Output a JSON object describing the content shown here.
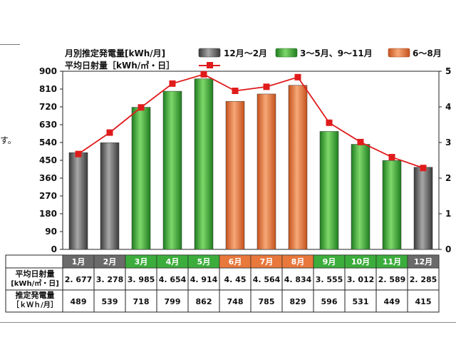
{
  "page": {
    "side_text": "す。"
  },
  "legend": {
    "bar_title": "月別推定発電量[kWh/月]",
    "line_title": "平均日射量［kWh/㎡・日］",
    "groups": [
      {
        "label": "12月～2月",
        "color": "#6a6a6a"
      },
      {
        "label": "3～5月、9～11月",
        "color": "#3cad3c"
      },
      {
        "label": "6～8月",
        "color": "#e8783c"
      }
    ]
  },
  "table": {
    "row_labels": [
      [
        "平均日射量",
        "[kWh/㎡・日]"
      ],
      [
        "推定発電量",
        "［ｋＷｈ/月］"
      ]
    ],
    "irradiance_display": [
      "2. 677",
      "3. 278",
      "3. 985",
      "4. 654",
      "4. 914",
      "4. 45",
      "4. 564",
      "4. 834",
      "3. 555",
      "3. 012",
      "2. 589",
      "2. 285"
    ],
    "generation_display": [
      "489",
      "539",
      "718",
      "799",
      "862",
      "748",
      "785",
      "829",
      "596",
      "531",
      "449",
      "415"
    ]
  },
  "chart_data": {
    "type": "bar",
    "categories": [
      "1月",
      "2月",
      "3月",
      "4月",
      "5月",
      "6月",
      "7月",
      "8月",
      "9月",
      "10月",
      "11月",
      "12月"
    ],
    "month_groups": [
      "winter",
      "winter",
      "spring_autumn",
      "spring_autumn",
      "spring_autumn",
      "summer",
      "summer",
      "summer",
      "spring_autumn",
      "spring_autumn",
      "spring_autumn",
      "winter"
    ],
    "group_colors": {
      "winter": "#6a6a6a",
      "spring_autumn": "#3cad3c",
      "summer": "#e8783c"
    },
    "series": [
      {
        "name": "月別推定発電量[kWh/月]",
        "type": "bar",
        "axis": "left",
        "values": [
          489,
          539,
          718,
          799,
          862,
          748,
          785,
          829,
          596,
          531,
          449,
          415
        ]
      },
      {
        "name": "平均日射量［kWh/㎡・日］",
        "type": "line",
        "axis": "right",
        "color": "#e01b1b",
        "values": [
          2.677,
          3.278,
          3.985,
          4.654,
          4.914,
          4.45,
          4.564,
          4.834,
          3.555,
          3.012,
          2.589,
          2.285
        ]
      }
    ],
    "y_left": {
      "min": 0,
      "max": 900,
      "ticks": [
        0,
        90,
        180,
        270,
        360,
        450,
        540,
        630,
        720,
        810,
        900
      ]
    },
    "y_right": {
      "min": 0,
      "max": 5,
      "ticks": [
        0,
        1,
        2,
        3,
        4,
        5
      ]
    },
    "grid": false,
    "legend_position": "top"
  }
}
